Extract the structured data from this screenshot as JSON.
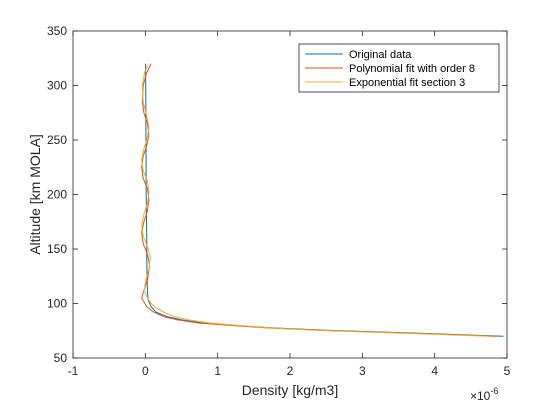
{
  "chart_data": {
    "type": "line",
    "title": "",
    "xlabel": "Density [kg/m3]",
    "ylabel": "Altitude [km MOLA]",
    "x_exponent_label": "×10",
    "x_exponent_power": "-6",
    "xlim": [
      -1,
      5
    ],
    "ylim": [
      50,
      350
    ],
    "x_ticks": [
      -1,
      0,
      1,
      2,
      3,
      4,
      5
    ],
    "y_ticks": [
      50,
      100,
      150,
      200,
      250,
      300,
      350
    ],
    "x_tick_labels": [
      "-1",
      "0",
      "1",
      "2",
      "3",
      "4",
      "5"
    ],
    "y_tick_labels": [
      "50",
      "100",
      "150",
      "200",
      "250",
      "300",
      "350"
    ],
    "grid": false,
    "legend_position": "top-right",
    "series": [
      {
        "name": "Original data",
        "color": "#0072BD",
        "x": [
          4.95,
          4.5,
          3.9,
          3.2,
          2.5,
          1.8,
          1.2,
          0.8,
          0.5,
          0.3,
          0.15,
          0.08,
          0.04,
          0.03,
          0.025,
          0.02,
          0.02,
          0.015,
          0.012,
          0.01,
          0.01,
          0.008,
          0.007,
          0.006,
          0.005,
          0.005,
          0.004,
          0.004
        ],
        "y": [
          70,
          71,
          72.5,
          74,
          75.5,
          77.5,
          80,
          82,
          85,
          88,
          92,
          97,
          103,
          110,
          120,
          140,
          160,
          180,
          200,
          220,
          240,
          260,
          280,
          290,
          300,
          310,
          315,
          320
        ]
      },
      {
        "name": "Polynomial fit with order 8",
        "color": "#D95319",
        "x": [
          4.85,
          4.4,
          3.8,
          3.1,
          2.4,
          1.7,
          1.15,
          0.75,
          0.45,
          0.25,
          0.12,
          0.02,
          -0.05,
          -0.02,
          0.03,
          0.06,
          0.03,
          -0.03,
          -0.05,
          -0.02,
          0.03,
          0.05,
          0.03,
          -0.03,
          -0.05,
          -0.03,
          0.02,
          0.05,
          0.03,
          -0.02,
          -0.04,
          -0.03,
          0.02,
          0.08
        ],
        "y": [
          70,
          71,
          72.5,
          74,
          75.5,
          77.5,
          80,
          82,
          85,
          88,
          92,
          97,
          105,
          112,
          122,
          135,
          145,
          155,
          165,
          175,
          185,
          195,
          205,
          215,
          225,
          235,
          245,
          255,
          265,
          275,
          285,
          300,
          312,
          320
        ]
      },
      {
        "name": "Exponential fit section 3",
        "color": "#EDB120",
        "x": [
          4.75,
          4.3,
          3.7,
          3.0,
          2.35,
          1.75,
          1.25,
          0.9,
          0.6,
          0.4,
          0.25,
          0.15,
          0.08,
          0.04,
          -0.02,
          0.01,
          0.05,
          0.07,
          0.03,
          -0.03,
          -0.05,
          -0.02,
          0.03,
          0.05,
          0.03,
          -0.03,
          -0.05,
          -0.02,
          0.03,
          0.05,
          0.02,
          -0.03,
          -0.04,
          -0.01,
          0.03
        ],
        "y": [
          70,
          71,
          72.5,
          74,
          75.5,
          77.5,
          80,
          82,
          85,
          88,
          92,
          96,
          100,
          104,
          112,
          122,
          132,
          142,
          152,
          162,
          172,
          182,
          192,
          202,
          212,
          222,
          232,
          242,
          252,
          262,
          272,
          285,
          300,
          312,
          318
        ]
      }
    ]
  }
}
